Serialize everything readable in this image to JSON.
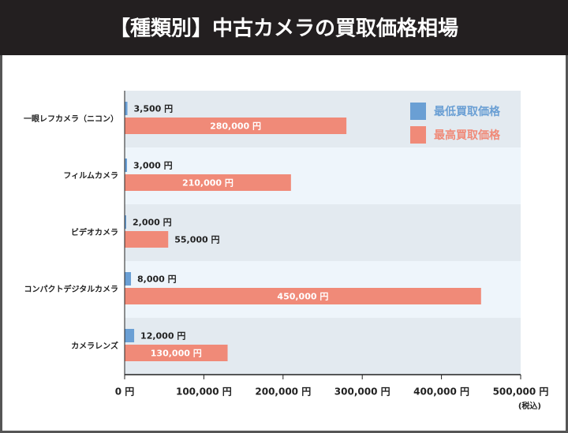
{
  "chart_data": {
    "type": "hbar",
    "title": "【種類別】中古カメラの買取価格相場",
    "categories": [
      "一眼レフカメラ（ニコン）",
      "フィルムカメラ",
      "ビデオカメラ",
      "コンパクトデジタルカメラ",
      "カメラレンズ"
    ],
    "series": [
      {
        "name": "最低買取価格",
        "color": "#6a9fd4",
        "values": [
          3500,
          3000,
          2000,
          8000,
          12000
        ],
        "value_labels": [
          "3,500 円",
          "3,000 円",
          "2,000 円",
          "8,000 円",
          "12,000 円"
        ]
      },
      {
        "name": "最高買取価格",
        "color": "#f08a78",
        "values": [
          280000,
          210000,
          55000,
          450000,
          130000
        ],
        "value_labels": [
          "280,000 円",
          "210,000 円",
          "55,000 円",
          "450,000 円",
          "130,000 円"
        ]
      }
    ],
    "xlim": [
      0,
      500000
    ],
    "xticks": [
      {
        "value": 0,
        "label": "0 円"
      },
      {
        "value": 100000,
        "label": "100,000 円"
      },
      {
        "value": 200000,
        "label": "200,000 円"
      },
      {
        "value": 300000,
        "label": "300,000 円"
      },
      {
        "value": 400000,
        "label": "400,000 円"
      },
      {
        "value": 500000,
        "label": "500,000 円"
      }
    ],
    "x_note": "(税込)",
    "legend": "top-right"
  }
}
